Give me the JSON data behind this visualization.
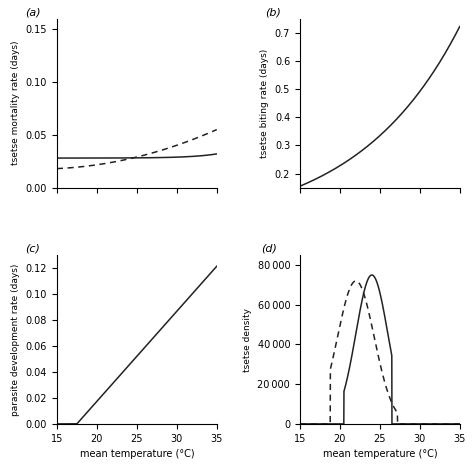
{
  "temp_range": [
    15,
    35
  ],
  "temp_ticks": [
    15,
    20,
    25,
    30,
    35
  ],
  "panel_labels": [
    "(a)",
    "(b)",
    "(c)",
    "(d)"
  ],
  "panel_a": {
    "ylabel": "tsetse mortality rate (days)",
    "ylim": [
      0,
      0.16
    ],
    "yticks": [
      0,
      0.05,
      0.1,
      0.15
    ]
  },
  "panel_b": {
    "ylabel": "tsetse biting rate (days)",
    "ylim": [
      0.15,
      0.75
    ],
    "yticks": [
      0.2,
      0.3,
      0.4,
      0.5,
      0.6,
      0.7
    ]
  },
  "panel_c": {
    "ylabel": "parasite development rate (days)",
    "ylim": [
      0,
      0.13
    ],
    "yticks": [
      0,
      0.02,
      0.04,
      0.06,
      0.08,
      0.1,
      0.12
    ]
  },
  "panel_d": {
    "ylabel": "tsetse density",
    "ylim": [
      0,
      85000
    ],
    "yticks": [
      0,
      20000,
      40000,
      60000,
      80000
    ]
  },
  "xlabel": "mean temperature (°C)",
  "line_color": "#222222",
  "background_color": "#ffffff"
}
